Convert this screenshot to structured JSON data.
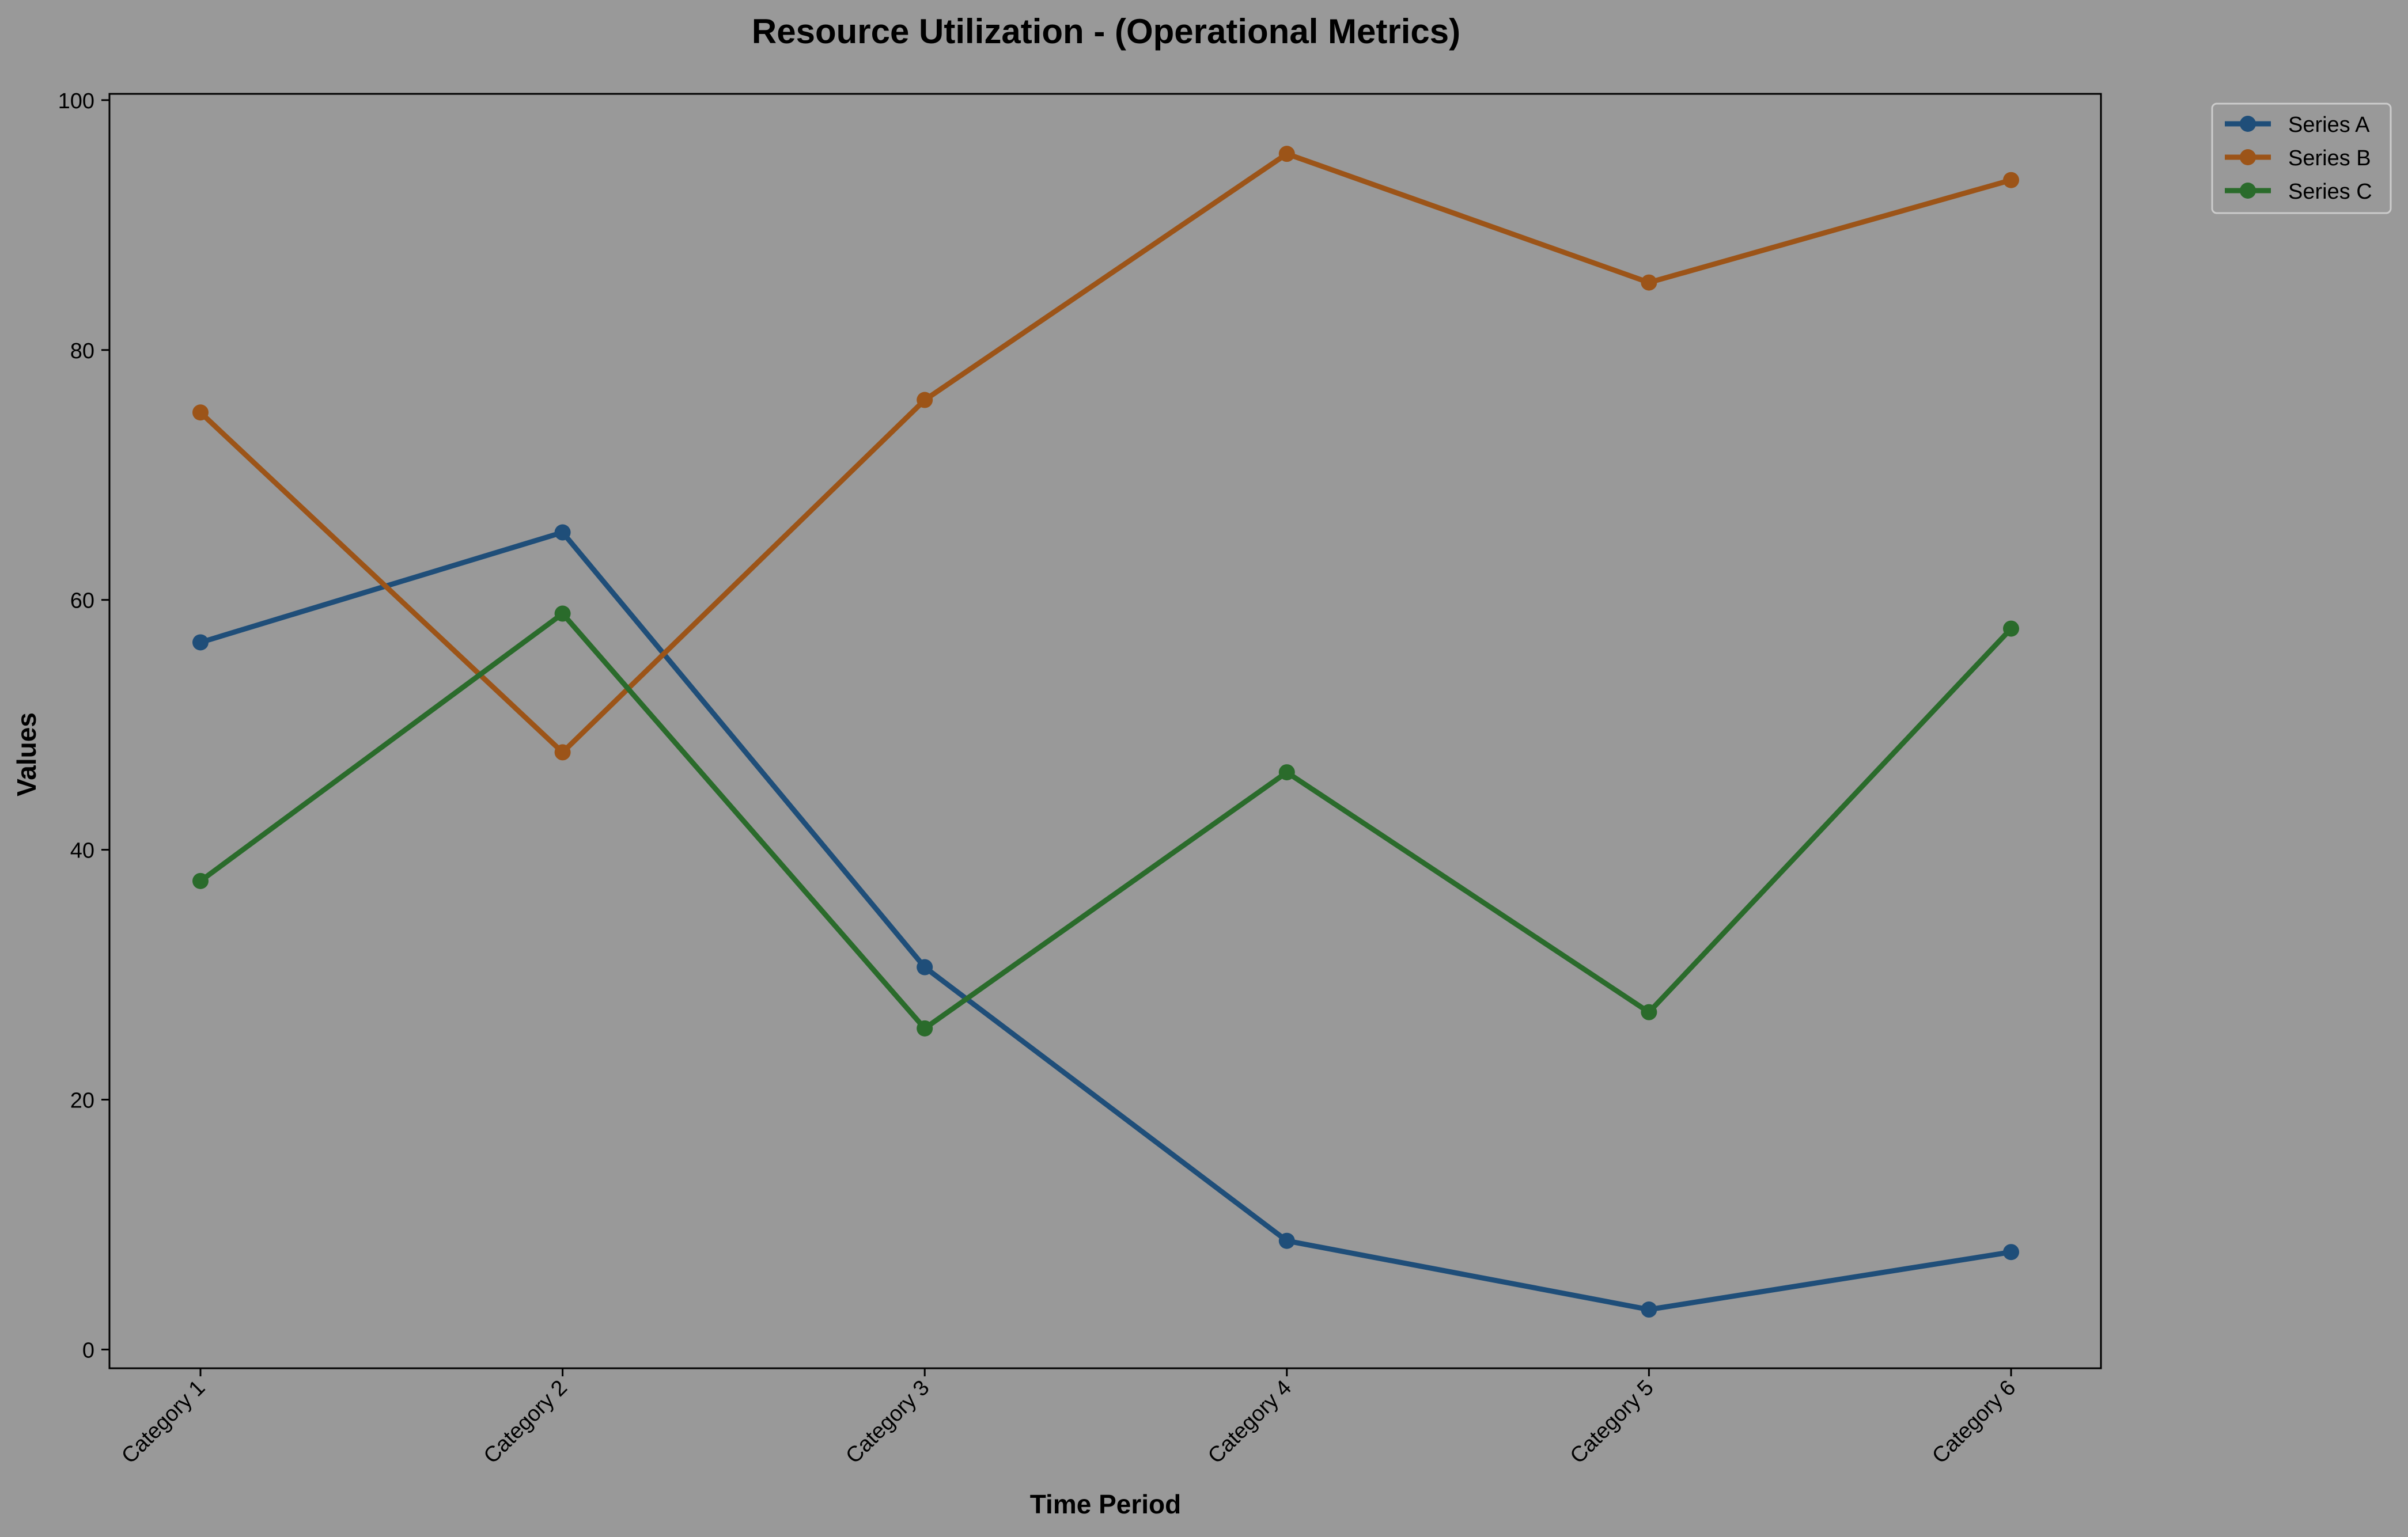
{
  "chart_data": {
    "type": "line",
    "title": "Resource Utilization - (Operational Metrics)",
    "xlabel": "Time Period",
    "ylabel": "Values",
    "categories": [
      "Category 1",
      "Category 2",
      "Category 3",
      "Category 4",
      "Category 5",
      "Category 6"
    ],
    "ylim": [
      -1.5,
      100.5
    ],
    "yticks": [
      0,
      20,
      40,
      60,
      80,
      100
    ],
    "grid": false,
    "legend_position": "outside-top-right",
    "background_color": "#999999",
    "series": [
      {
        "name": "Series A",
        "color": "#1f4e79",
        "values": [
          56.6,
          65.4,
          30.6,
          8.7,
          3.2,
          7.8
        ]
      },
      {
        "name": "Series B",
        "color": "#9c5418",
        "values": [
          75.0,
          47.8,
          76.0,
          95.7,
          85.4,
          93.6
        ]
      },
      {
        "name": "Series C",
        "color": "#2a6b2b",
        "values": [
          37.5,
          58.9,
          25.7,
          46.2,
          27.0,
          57.7
        ]
      }
    ]
  }
}
